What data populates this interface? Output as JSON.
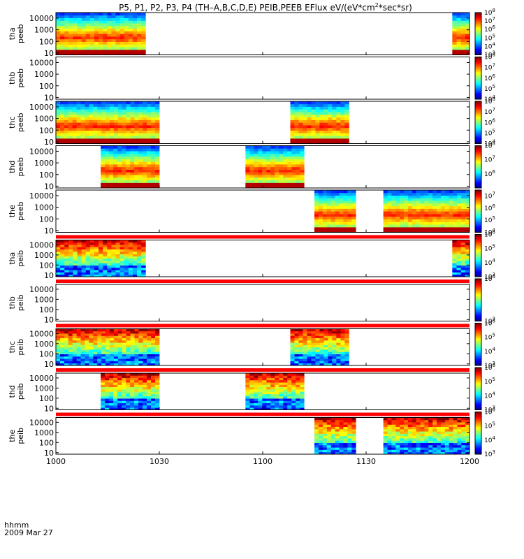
{
  "title": {
    "prefix": "P5, P1, P2, P3, P4 (TH–A,B,C,D,E) PEIB,PEEB EFlux eV/(eV*cm",
    "sup": "2",
    "suffix": "*sec*sr)"
  },
  "footer": {
    "time_label": "hhmm",
    "date_label": "2009 Mar 27"
  },
  "colors": {
    "background": "#ffffff",
    "fill_bar": "#ff0000",
    "frame": "#000000"
  },
  "chart_data": {
    "type": "heatmap",
    "x_range_hhmm": [
      "10:00",
      "12:00"
    ],
    "x_ticks": [
      "1000",
      "1030",
      "1100",
      "1130",
      "1200"
    ],
    "y_scale": "log",
    "y_range_eV": [
      7,
      30000
    ],
    "y_ticks": [
      "10",
      "100",
      "1000",
      "10000"
    ],
    "panels": [
      {
        "label_top": "tha",
        "label_bottom": "peeb",
        "species": "e",
        "data_intervals": [
          [
            "10:00",
            "10:26"
          ],
          [
            "11:55",
            "12:00"
          ]
        ],
        "colorbar_ticks": [
          {
            "base": "10",
            "exp": "3"
          },
          {
            "base": "10",
            "exp": "4"
          },
          {
            "base": "10",
            "exp": "5"
          },
          {
            "base": "10",
            "exp": "6"
          },
          {
            "base": "10",
            "exp": "7"
          },
          {
            "base": "10",
            "exp": "8"
          }
        ],
        "colorbar_range": [
          3,
          8
        ],
        "top_bar": false
      },
      {
        "label_top": "thb",
        "label_bottom": "peeb",
        "species": "e",
        "data_intervals": [],
        "colorbar_ticks": [
          {
            "base": "10",
            "exp": "4"
          },
          {
            "base": "10",
            "exp": "5"
          },
          {
            "base": "10",
            "exp": "6"
          },
          {
            "base": "10",
            "exp": "7"
          },
          {
            "base": "10",
            "exp": "8"
          }
        ],
        "colorbar_range": [
          4,
          8
        ],
        "top_bar": false
      },
      {
        "label_top": "thc",
        "label_bottom": "peeb",
        "species": "e",
        "data_intervals": [
          [
            "10:00",
            "10:30"
          ],
          [
            "11:08",
            "11:25"
          ]
        ],
        "colorbar_ticks": [
          {
            "base": "10",
            "exp": "4"
          },
          {
            "base": "10",
            "exp": "5"
          },
          {
            "base": "10",
            "exp": "6"
          },
          {
            "base": "10",
            "exp": "7"
          },
          {
            "base": "10",
            "exp": "8"
          }
        ],
        "colorbar_range": [
          4,
          8
        ],
        "top_bar": false
      },
      {
        "label_top": "thd",
        "label_bottom": "peeb",
        "species": "e",
        "data_intervals": [
          [
            "10:13",
            "10:30"
          ],
          [
            "10:55",
            "11:12"
          ]
        ],
        "colorbar_ticks": [
          {
            "base": "10",
            "exp": "6"
          },
          {
            "base": "10",
            "exp": "7"
          },
          {
            "base": "10",
            "exp": "8"
          }
        ],
        "colorbar_range": [
          5,
          8
        ],
        "top_bar": false
      },
      {
        "label_top": "the",
        "label_bottom": "peeb",
        "species": "e",
        "data_intervals": [
          [
            "11:15",
            "11:27"
          ],
          [
            "11:35",
            "12:00"
          ]
        ],
        "colorbar_ticks": [
          {
            "base": "10",
            "exp": "4"
          },
          {
            "base": "10",
            "exp": "5"
          },
          {
            "base": "10",
            "exp": "6"
          },
          {
            "base": "10",
            "exp": "7"
          }
        ],
        "colorbar_range": [
          4,
          7.5
        ],
        "top_bar": false
      },
      {
        "label_top": "tha",
        "label_bottom": "peib",
        "species": "i",
        "data_intervals": [
          [
            "10:00",
            "10:26"
          ],
          [
            "11:55",
            "12:00"
          ]
        ],
        "colorbar_ticks": [
          {
            "base": "10",
            "exp": "3"
          },
          {
            "base": "10",
            "exp": "4"
          },
          {
            "base": "10",
            "exp": "5"
          },
          {
            "base": "10",
            "exp": "6"
          }
        ],
        "colorbar_range": [
          3,
          6
        ],
        "top_bar": true
      },
      {
        "label_top": "thb",
        "label_bottom": "peib",
        "species": "i",
        "data_intervals": [],
        "colorbar_ticks": [
          {
            "base": "10",
            "exp": "3"
          },
          {
            "base": "10",
            "exp": "6"
          }
        ],
        "colorbar_range": [
          3,
          6
        ],
        "top_bar": true
      },
      {
        "label_top": "thc",
        "label_bottom": "peib",
        "species": "i",
        "data_intervals": [
          [
            "10:00",
            "10:30"
          ],
          [
            "11:08",
            "11:25"
          ]
        ],
        "colorbar_ticks": [
          {
            "base": "10",
            "exp": "3"
          },
          {
            "base": "10",
            "exp": "4"
          },
          {
            "base": "10",
            "exp": "5"
          },
          {
            "base": "10",
            "exp": "6"
          }
        ],
        "colorbar_range": [
          3,
          6
        ],
        "top_bar": true
      },
      {
        "label_top": "thd",
        "label_bottom": "peib",
        "species": "i",
        "data_intervals": [
          [
            "10:13",
            "10:30"
          ],
          [
            "10:55",
            "11:12"
          ]
        ],
        "colorbar_ticks": [
          {
            "base": "10",
            "exp": "3"
          },
          {
            "base": "10",
            "exp": "4"
          },
          {
            "base": "10",
            "exp": "5"
          },
          {
            "base": "10",
            "exp": "6"
          }
        ],
        "colorbar_range": [
          3,
          6
        ],
        "top_bar": true
      },
      {
        "label_top": "the",
        "label_bottom": "peib",
        "species": "i",
        "data_intervals": [
          [
            "11:15",
            "11:27"
          ],
          [
            "11:35",
            "12:00"
          ]
        ],
        "colorbar_ticks": [
          {
            "base": "10",
            "exp": "3"
          },
          {
            "base": "10",
            "exp": "4"
          },
          {
            "base": "10",
            "exp": "5"
          },
          {
            "base": "10",
            "exp": "6"
          }
        ],
        "colorbar_range": [
          3,
          6
        ],
        "top_bar": true
      }
    ]
  }
}
